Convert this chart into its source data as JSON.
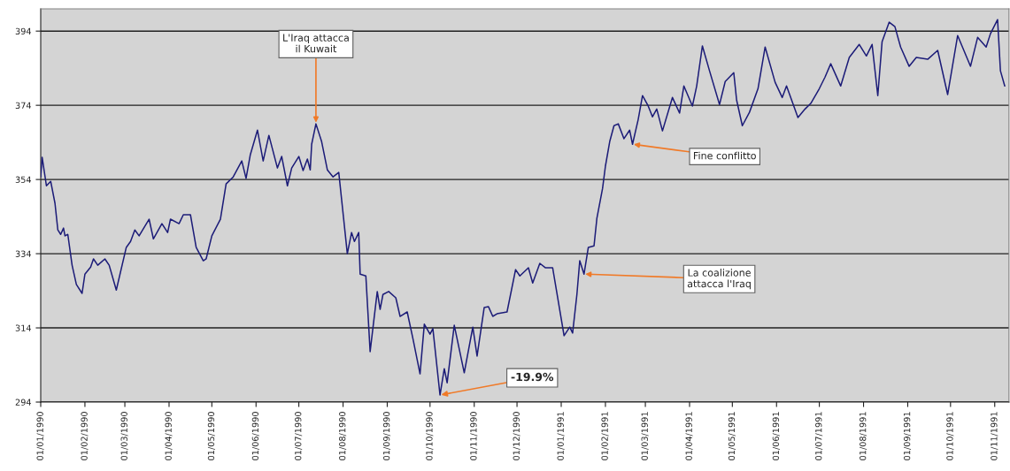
{
  "chart_data": {
    "type": "line",
    "x": [
      "1990-01-01",
      "1990-01-02",
      "1990-01-05",
      "1990-01-08",
      "1990-01-11",
      "1990-01-13",
      "1990-01-15",
      "1990-01-17",
      "1990-01-18",
      "1990-01-20",
      "1990-01-23",
      "1990-01-26",
      "1990-01-30",
      "1990-02-01",
      "1990-02-05",
      "1990-02-07",
      "1990-02-10",
      "1990-02-15",
      "1990-02-18",
      "1990-02-23",
      "1990-03-02",
      "1990-03-05",
      "1990-03-08",
      "1990-03-11",
      "1990-03-18",
      "1990-03-21",
      "1990-03-27",
      "1990-03-31",
      "1990-04-02",
      "1990-04-08",
      "1990-04-11",
      "1990-04-16",
      "1990-04-20",
      "1990-04-25",
      "1990-04-27",
      "1990-05-01",
      "1990-05-07",
      "1990-05-11",
      "1990-05-16",
      "1990-05-22",
      "1990-05-25",
      "1990-05-28",
      "1990-06-02",
      "1990-06-06",
      "1990-06-10",
      "1990-06-16",
      "1990-06-19",
      "1990-06-23",
      "1990-06-26",
      "1990-07-01",
      "1990-07-04",
      "1990-07-07",
      "1990-07-09",
      "1990-07-10",
      "1990-07-13",
      "1990-07-17",
      "1990-07-21",
      "1990-07-25",
      "1990-07-29",
      "1990-08-04",
      "1990-08-07",
      "1990-08-09",
      "1990-08-12",
      "1990-08-13",
      "1990-08-17",
      "1990-08-20",
      "1990-08-25",
      "1990-08-27",
      "1990-08-29",
      "1990-09-02",
      "1990-09-07",
      "1990-09-10",
      "1990-09-15",
      "1990-09-19",
      "1990-09-24",
      "1990-09-27",
      "1990-10-01",
      "1990-10-03",
      "1990-10-08",
      "1990-10-11",
      "1990-10-13",
      "1990-10-18",
      "1990-10-25",
      "1990-10-31",
      "1990-11-03",
      "1990-11-08",
      "1990-11-11",
      "1990-11-14",
      "1990-11-17",
      "1990-11-24",
      "1990-11-30",
      "1990-12-03",
      "1990-12-09",
      "1990-12-12",
      "1990-12-17",
      "1990-12-21",
      "1990-12-26",
      "1991-01-03",
      "1991-01-07",
      "1991-01-09",
      "1991-01-12",
      "1991-01-14",
      "1991-01-17",
      "1991-01-20",
      "1991-01-24",
      "1991-01-26",
      "1991-01-30",
      "1991-02-01",
      "1991-02-04",
      "1991-02-07",
      "1991-02-10",
      "1991-02-14",
      "1991-02-18",
      "1991-02-20",
      "1991-02-24",
      "1991-02-27",
      "1991-03-03",
      "1991-03-06",
      "1991-03-09",
      "1991-03-13",
      "1991-03-20",
      "1991-03-25",
      "1991-03-28",
      "1991-04-03",
      "1991-04-06",
      "1991-04-10",
      "1991-04-15",
      "1991-04-22",
      "1991-04-26",
      "1991-05-02",
      "1991-05-04",
      "1991-05-08",
      "1991-05-13",
      "1991-05-19",
      "1991-05-24",
      "1991-05-31",
      "1991-06-05",
      "1991-06-08",
      "1991-06-16",
      "1991-06-21",
      "1991-06-25",
      "1991-07-01",
      "1991-07-05",
      "1991-07-09",
      "1991-07-16",
      "1991-07-22",
      "1991-07-29",
      "1991-08-03",
      "1991-08-07",
      "1991-08-11",
      "1991-08-14",
      "1991-08-19",
      "1991-08-23",
      "1991-08-27",
      "1991-09-02",
      "1991-09-07",
      "1991-09-15",
      "1991-09-22",
      "1991-09-29",
      "1991-10-06",
      "1991-10-15",
      "1991-10-20",
      "1991-10-26",
      "1991-10-29",
      "1991-11-03",
      "1991-11-05",
      "1991-11-08"
    ],
    "series": [
      {
        "color": "#1c1c78",
        "values": [
          354.7,
          360,
          352.3,
          353.5,
          347.6,
          340.4,
          339.2,
          340.9,
          338.8,
          339.2,
          330.9,
          325.7,
          323.3,
          328.5,
          330.4,
          332.6,
          330.9,
          332.6,
          330.9,
          324.2,
          335.7,
          337.3,
          340.4,
          338.8,
          343.3,
          338,
          342.1,
          339.7,
          343.3,
          342.1,
          344.5,
          344.5,
          335.7,
          332.1,
          332.6,
          338.8,
          343.3,
          352.8,
          354.7,
          359,
          354.3,
          360.7,
          367.3,
          359,
          365.9,
          357.1,
          360.2,
          352.3,
          357.1,
          360.2,
          356.4,
          359.5,
          356.6,
          363.5,
          369,
          364.2,
          356.6,
          354.7,
          355.9,
          334,
          339.7,
          337.3,
          339.7,
          328.5,
          328,
          307.6,
          323.8,
          319,
          323,
          323.8,
          322.1,
          317.1,
          318.3,
          311.1,
          301.6,
          315,
          312.3,
          313.8,
          295.9,
          303,
          299.2,
          314.7,
          301.9,
          314.2,
          306.4,
          319.5,
          319.7,
          317.1,
          317.8,
          318.3,
          329.7,
          328,
          330.2,
          326.1,
          331.4,
          330.2,
          330.2,
          311.9,
          314.2,
          312.6,
          323,
          332.1,
          328.5,
          335.7,
          336.1,
          343.5,
          351.6,
          357.6,
          364.2,
          368.5,
          369,
          365,
          367.3,
          363.5,
          370.2,
          376.6,
          373.8,
          370.9,
          373,
          367.1,
          376.1,
          371.9,
          379.2,
          373.8,
          379.2,
          390,
          383.3,
          374.2,
          380.4,
          382.8,
          375.4,
          368.5,
          372.1,
          378.5,
          389.7,
          380.2,
          376.1,
          379.2,
          370.7,
          373,
          374.5,
          378.5,
          381.6,
          385.2,
          379.2,
          386.9,
          390.4,
          387.3,
          390.4,
          376.6,
          391.1,
          396.4,
          395.2,
          389.7,
          384.5,
          386.9,
          386.4,
          388.8,
          376.9,
          392.8,
          384.5,
          392.3,
          389.7,
          393.3,
          397.1,
          383.3,
          379.2
        ]
      }
    ],
    "xlim": [
      "1990-01-01",
      "1991-11-11"
    ],
    "xticks": [
      {
        "value": "1990-01-01",
        "label": "01/01/1990"
      },
      {
        "value": "1990-02-01",
        "label": "01/02/1990"
      },
      {
        "value": "1990-03-01",
        "label": "01/03/1990"
      },
      {
        "value": "1990-04-01",
        "label": "01/04/1990"
      },
      {
        "value": "1990-05-01",
        "label": "01/05/1990"
      },
      {
        "value": "1990-06-01",
        "label": "01/06/1990"
      },
      {
        "value": "1990-07-01",
        "label": "01/07/1990"
      },
      {
        "value": "1990-08-01",
        "label": "01/08/1990"
      },
      {
        "value": "1990-09-01",
        "label": "01/09/1990"
      },
      {
        "value": "1990-10-01",
        "label": "01/10/1990"
      },
      {
        "value": "1990-11-01",
        "label": "01/11/1990"
      },
      {
        "value": "1990-12-01",
        "label": "01/12/1990"
      },
      {
        "value": "1991-01-01",
        "label": "01/01/1991"
      },
      {
        "value": "1991-02-01",
        "label": "01/02/1991"
      },
      {
        "value": "1991-03-01",
        "label": "01/03/1991"
      },
      {
        "value": "1991-04-01",
        "label": "01/04/1991"
      },
      {
        "value": "1991-05-01",
        "label": "01/05/1991"
      },
      {
        "value": "1991-06-01",
        "label": "01/06/1991"
      },
      {
        "value": "1991-07-01",
        "label": "01/07/1991"
      },
      {
        "value": "1991-08-01",
        "label": "01/08/1991"
      },
      {
        "value": "1991-09-01",
        "label": "01/09/1991"
      },
      {
        "value": "1991-10-01",
        "label": "01/10/1991"
      },
      {
        "value": "1991-11-01",
        "label": "01/11/1991"
      }
    ],
    "ylim": [
      294,
      400
    ],
    "yticks": [
      294,
      314,
      334,
      354,
      374,
      394
    ],
    "grid": "y",
    "annotations": [
      {
        "text": "L'Iraq attacca\nil Kuwait",
        "x": "1990-07-13",
        "y": 369
      },
      {
        "text": "-19.9%",
        "x": "1990-10-08",
        "y": 295.9
      },
      {
        "text": "La coalizione\nattacca l'Iraq",
        "x": "1991-01-17",
        "y": 328.5
      },
      {
        "text": "Fine conflitto",
        "x": "1991-02-20",
        "y": 363.5
      }
    ]
  }
}
